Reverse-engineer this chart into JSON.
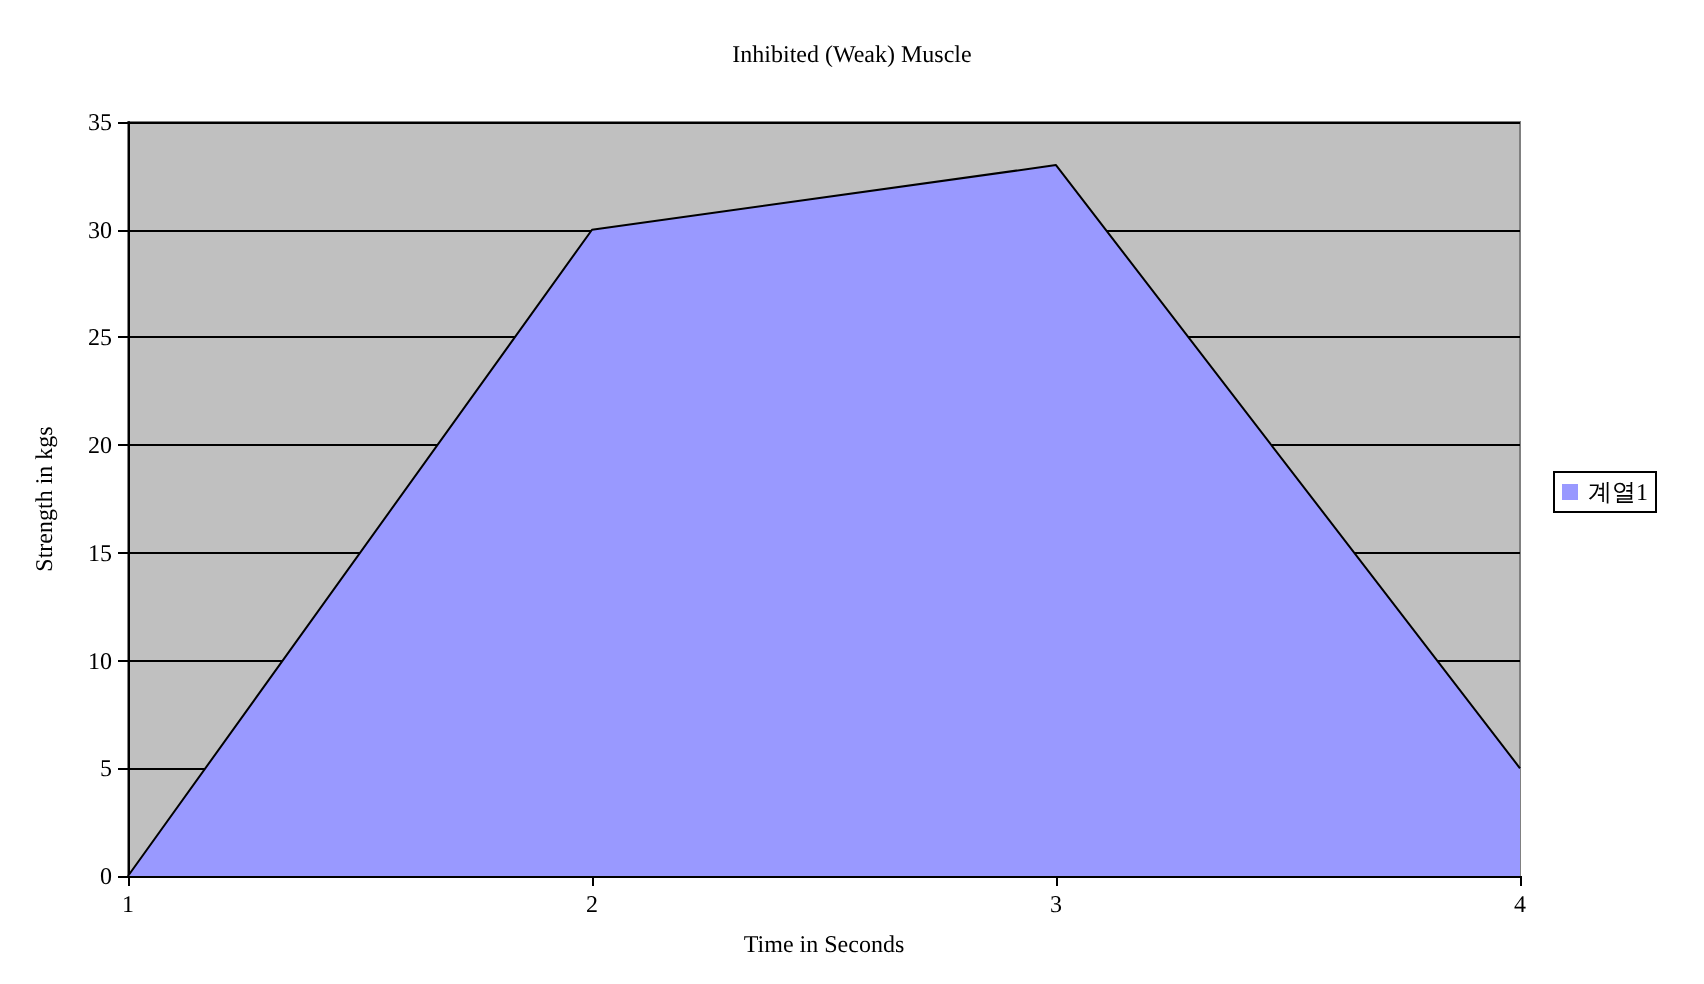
{
  "chart_data": {
    "type": "area",
    "title": "Inhibited (Weak) Muscle",
    "xlabel": "Time in Seconds",
    "ylabel": "Strength in kgs",
    "categories": [
      "1",
      "2",
      "3",
      "4"
    ],
    "series": [
      {
        "name": "계열1",
        "color": "#9999ff",
        "values": [
          0,
          30,
          33,
          5
        ]
      }
    ],
    "ylim": [
      0,
      35
    ],
    "yticks": [
      0,
      5,
      10,
      15,
      20,
      25,
      30,
      35
    ],
    "grid": "y",
    "legend": "right",
    "marker": "none"
  }
}
